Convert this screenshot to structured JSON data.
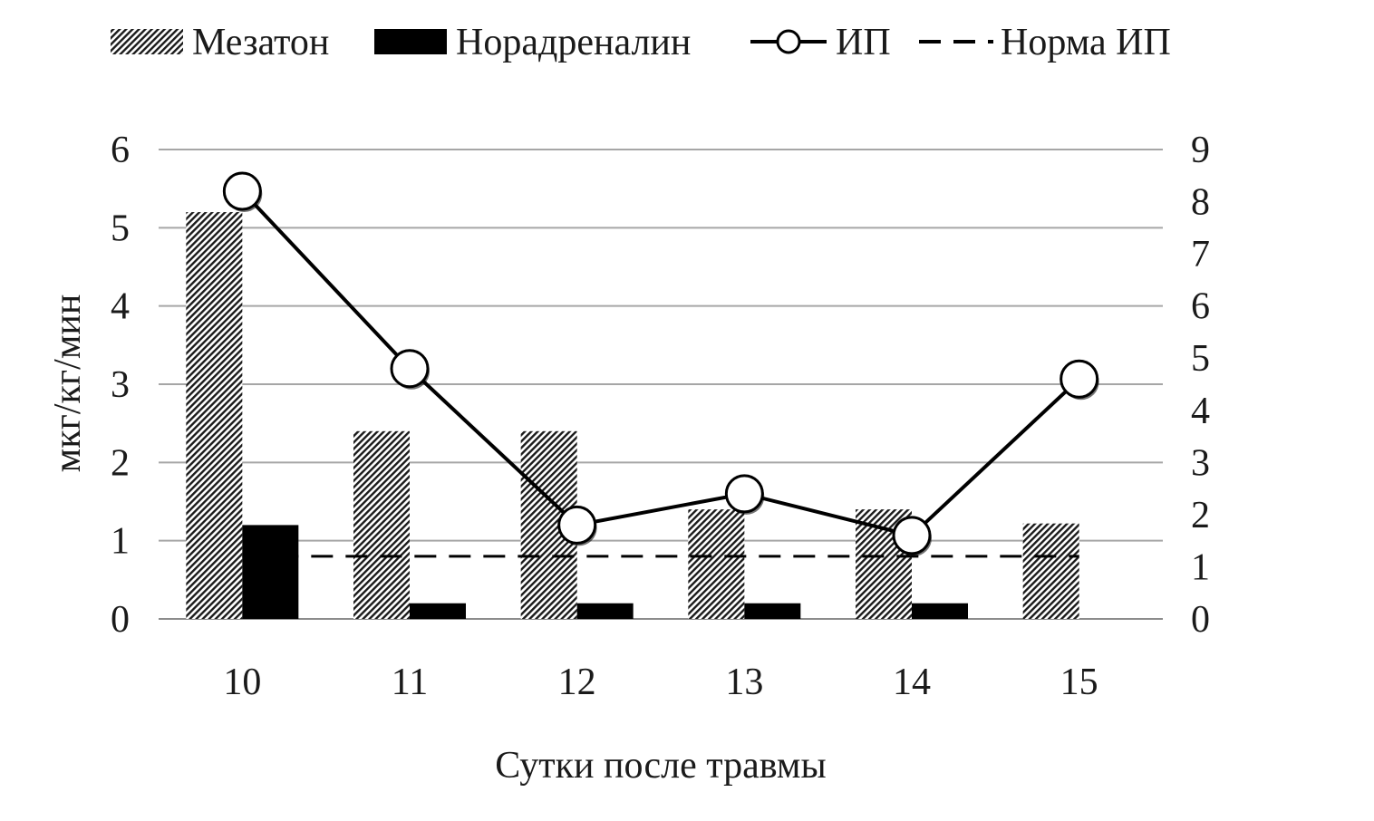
{
  "chart_data": {
    "type": "bar",
    "categories": [
      "10",
      "11",
      "12",
      "13",
      "14",
      "15"
    ],
    "xlabel": "Сутки после травмы",
    "ylabel": "мкг/кг/мин",
    "ylim": [
      0,
      6
    ],
    "yticks": [
      "0",
      "1",
      "2",
      "3",
      "4",
      "5",
      "6"
    ],
    "y2lim": [
      0,
      9
    ],
    "y2ticks": [
      "0",
      "1",
      "2",
      "3",
      "4",
      "5",
      "6",
      "7",
      "8",
      "9"
    ],
    "grid": true,
    "legend_position": "top",
    "series": [
      {
        "name": "Мезатон",
        "kind": "bar",
        "axis": "left",
        "pattern": "diagonal-hatch",
        "values": [
          5.2,
          2.4,
          2.4,
          1.4,
          1.4,
          1.22
        ]
      },
      {
        "name": "Норадреналин",
        "kind": "bar",
        "axis": "left",
        "pattern": "solid-black",
        "values": [
          1.2,
          0.2,
          0.2,
          0.2,
          0.2,
          0
        ]
      },
      {
        "name": "ИП",
        "kind": "line",
        "axis": "right",
        "marker": "open-circle",
        "values": [
          8.2,
          4.8,
          1.8,
          2.4,
          1.6,
          4.6
        ]
      },
      {
        "name": "Норма ИП",
        "kind": "line",
        "axis": "right",
        "style": "dashed",
        "values": [
          1.2,
          1.2,
          1.2,
          1.2,
          1.2,
          1.2
        ]
      }
    ],
    "colors": {
      "grid": "#a6a6a6",
      "bar_solid": "#000000",
      "hatch": "#1a1a1a",
      "line": "#000000",
      "marker_fill": "#ffffff",
      "text": "#1a1a1a"
    }
  }
}
